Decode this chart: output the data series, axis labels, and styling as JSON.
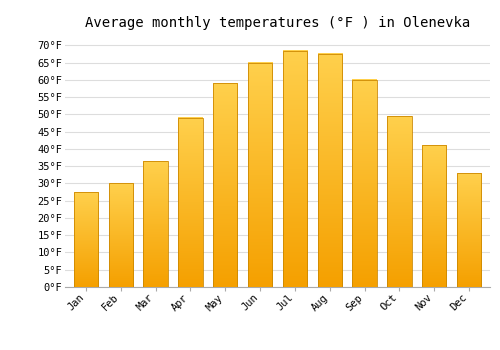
{
  "months": [
    "Jan",
    "Feb",
    "Mar",
    "Apr",
    "May",
    "Jun",
    "Jul",
    "Aug",
    "Sep",
    "Oct",
    "Nov",
    "Dec"
  ],
  "values": [
    27.5,
    30.0,
    36.5,
    49.0,
    59.0,
    65.0,
    68.5,
    67.5,
    60.0,
    49.5,
    41.0,
    33.0
  ],
  "bar_color_top": "#FFD04C",
  "bar_color_bottom": "#F5A000",
  "bar_edge_color": "#CC8800",
  "title": "Average monthly temperatures (°F ) in Olenevka",
  "ylim": [
    0,
    73
  ],
  "yticks": [
    0,
    5,
    10,
    15,
    20,
    25,
    30,
    35,
    40,
    45,
    50,
    55,
    60,
    65,
    70
  ],
  "ytick_labels": [
    "0°F",
    "5°F",
    "10°F",
    "15°F",
    "20°F",
    "25°F",
    "30°F",
    "35°F",
    "40°F",
    "45°F",
    "50°F",
    "55°F",
    "60°F",
    "65°F",
    "70°F"
  ],
  "background_color": "#FFFFFF",
  "grid_color": "#DDDDDD",
  "title_fontsize": 10,
  "tick_fontsize": 7.5,
  "bar_width": 0.7
}
